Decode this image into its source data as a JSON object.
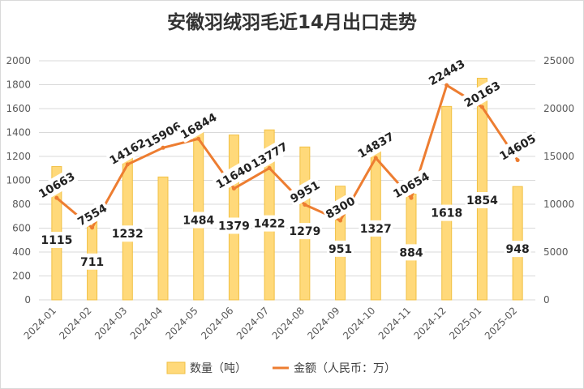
{
  "chart_data": {
    "type": "bar",
    "title": "安徽羽绒羽毛近14月出口走势",
    "categories": [
      "2024-01",
      "2024-02",
      "2024-03",
      "2024-04",
      "2024-05",
      "2024-06",
      "2024-07",
      "2024-08",
      "2024-09",
      "2024-10",
      "2024-11",
      "2024-12",
      "2025-01",
      "2025-02"
    ],
    "series": [
      {
        "name": "数量（吨）",
        "kind": "bar",
        "axis": "left",
        "color": "#FFD97A",
        "values": [
          1115,
          711,
          1232,
          1028,
          1484,
          1379,
          1422,
          1279,
          951,
          1327,
          884,
          1618,
          1854,
          948
        ],
        "labels_shown": [
          true,
          true,
          true,
          false,
          true,
          true,
          true,
          true,
          true,
          true,
          true,
          true,
          true,
          true
        ]
      },
      {
        "name": "金额（人民币：万）",
        "kind": "line",
        "axis": "right",
        "color": "#ED7D31",
        "values": [
          10663,
          7554,
          14162,
          15906,
          16844,
          11640,
          13777,
          9951,
          8300,
          14837,
          10654,
          22443,
          20163,
          14605
        ]
      }
    ],
    "y_left": {
      "min": 0,
      "max": 2000,
      "step": 200,
      "ticks": [
        "0",
        "200",
        "400",
        "600",
        "800",
        "1000",
        "1200",
        "1400",
        "1600",
        "1800",
        "2000"
      ]
    },
    "y_right": {
      "min": 0,
      "max": 25000,
      "step": 5000,
      "ticks": [
        "0",
        "5000",
        "10000",
        "15000",
        "20000",
        "25000"
      ]
    },
    "grid": true,
    "legend_position": "bottom"
  }
}
